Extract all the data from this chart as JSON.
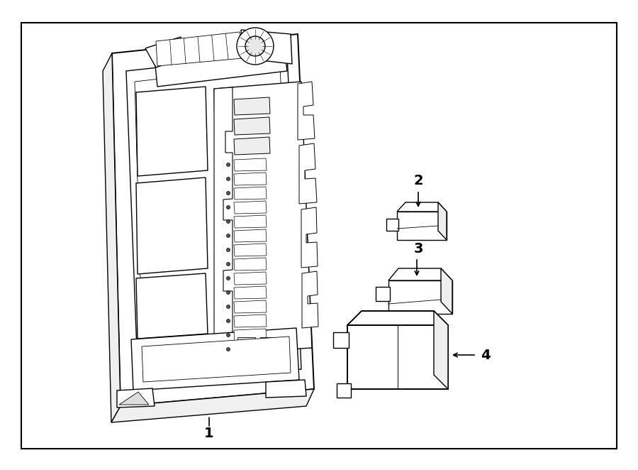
{
  "background_color": "#ffffff",
  "line_color": "#000000",
  "border": [
    30,
    30,
    840,
    600
  ],
  "label_1": "1",
  "label_2": "2",
  "label_3": "3",
  "label_4": "4",
  "figsize": [
    9.0,
    6.62
  ],
  "dpi": 100
}
